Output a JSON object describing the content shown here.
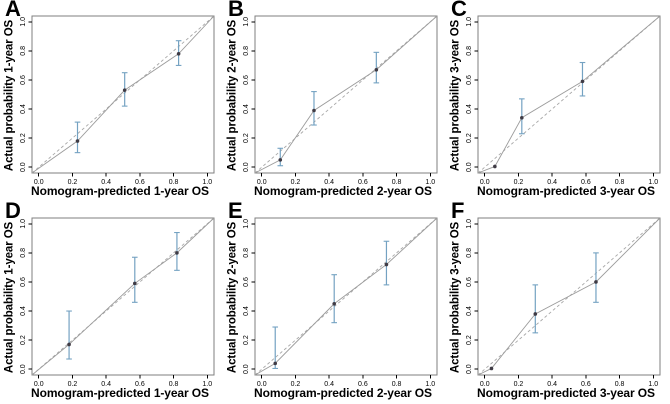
{
  "figure": {
    "background": "#ffffff",
    "description": "Calibration curves of nomogram-predicted vs actual overall survival probability, six panels A-F"
  },
  "colors": {
    "axis": "#000000",
    "box": "#7f7f7f",
    "text": "#000000",
    "ideal_line": "#a8a8a8",
    "calibration_line": "#9c9c9c",
    "error_bar": "#74a2c2",
    "marker": "#3f3b45",
    "background": "#ffffff"
  },
  "chart_data": [
    {
      "panel": "A",
      "type": "scatter",
      "xlabel": "Nomogram-predicted 1-year OS",
      "ylabel": "Actual probability 1-year OS",
      "xlim": [
        0,
        1
      ],
      "ylim": [
        0,
        1
      ],
      "tick_values": [
        0,
        0.2,
        0.4,
        0.6,
        0.8,
        1.0
      ],
      "tick_labels": [
        "0.0",
        "0.2",
        "0.4",
        "0.6",
        "0.8",
        "1.0"
      ],
      "grid": false,
      "ideal_line": "dashed diagonal from (0,0) to (1,1)",
      "points": [
        {
          "x": 0.23,
          "y": 0.18,
          "ci": [
            0.1,
            0.31
          ]
        },
        {
          "x": 0.51,
          "y": 0.53,
          "ci": [
            0.42,
            0.65
          ]
        },
        {
          "x": 0.83,
          "y": 0.78,
          "ci": [
            0.7,
            0.87
          ]
        }
      ]
    },
    {
      "panel": "B",
      "type": "scatter",
      "xlabel": "Nomogram-predicted 2-year OS",
      "ylabel": "Actual probability 2-year OS",
      "xlim": [
        0,
        1
      ],
      "ylim": [
        0,
        1
      ],
      "tick_values": [
        0,
        0.2,
        0.4,
        0.6,
        0.8,
        1.0
      ],
      "tick_labels": [
        "0.0",
        "0.2",
        "0.4",
        "0.6",
        "0.8",
        "1.0"
      ],
      "grid": false,
      "ideal_line": "dashed diagonal from (0,0) to (1,1)",
      "points": [
        {
          "x": 0.11,
          "y": 0.05,
          "ci": [
            0.01,
            0.13
          ]
        },
        {
          "x": 0.31,
          "y": 0.39,
          "ci": [
            0.29,
            0.52
          ]
        },
        {
          "x": 0.68,
          "y": 0.67,
          "ci": [
            0.58,
            0.79
          ]
        }
      ]
    },
    {
      "panel": "C",
      "type": "scatter",
      "xlabel": "Nomogram-predicted 3-year OS",
      "ylabel": "Actual probability 3-year OS",
      "xlim": [
        0,
        1
      ],
      "ylim": [
        0,
        1
      ],
      "tick_values": [
        0,
        0.2,
        0.4,
        0.6,
        0.8,
        1.0
      ],
      "tick_labels": [
        "0.0",
        "0.2",
        "0.4",
        "0.6",
        "0.8",
        "1.0"
      ],
      "grid": false,
      "ideal_line": "dashed diagonal from (0,0) to (1,1)",
      "points": [
        {
          "x": 0.06,
          "y": 0.005,
          "ci": null
        },
        {
          "x": 0.22,
          "y": 0.34,
          "ci": [
            0.23,
            0.47
          ]
        },
        {
          "x": 0.58,
          "y": 0.59,
          "ci": [
            0.49,
            0.72
          ]
        }
      ]
    },
    {
      "panel": "D",
      "type": "scatter",
      "xlabel": "Nomogram-predicted 1-year OS",
      "ylabel": "Actual probability 1-year OS",
      "xlim": [
        0,
        1
      ],
      "ylim": [
        0,
        1
      ],
      "tick_values": [
        0,
        0.2,
        0.4,
        0.6,
        0.8,
        1.0
      ],
      "tick_labels": [
        "0.0",
        "0.2",
        "0.4",
        "0.6",
        "0.8",
        "1.0"
      ],
      "grid": false,
      "ideal_line": "dashed diagonal from (0,0) to (1,1)",
      "points": [
        {
          "x": 0.18,
          "y": 0.17,
          "ci": [
            0.07,
            0.4
          ]
        },
        {
          "x": 0.57,
          "y": 0.59,
          "ci": [
            0.46,
            0.77
          ]
        },
        {
          "x": 0.82,
          "y": 0.8,
          "ci": [
            0.68,
            0.94
          ]
        }
      ]
    },
    {
      "panel": "E",
      "type": "scatter",
      "xlabel": "Nomogram-predicted 2-year OS",
      "ylabel": "Actual probability 2-year OS",
      "xlim": [
        0,
        1
      ],
      "ylim": [
        0,
        1
      ],
      "tick_values": [
        0,
        0.2,
        0.4,
        0.6,
        0.8,
        1.0
      ],
      "tick_labels": [
        "0.0",
        "0.2",
        "0.4",
        "0.6",
        "0.8",
        "1.0"
      ],
      "grid": false,
      "ideal_line": "dashed diagonal from (0,0) to (1,1)",
      "points": [
        {
          "x": 0.08,
          "y": 0.04,
          "ci": [
            0.005,
            0.29
          ]
        },
        {
          "x": 0.43,
          "y": 0.45,
          "ci": [
            0.32,
            0.65
          ]
        },
        {
          "x": 0.74,
          "y": 0.72,
          "ci": [
            0.58,
            0.88
          ]
        }
      ]
    },
    {
      "panel": "F",
      "type": "scatter",
      "xlabel": "Nomogram-predicted 3-year OS",
      "ylabel": "Actual probability 3-year OS",
      "xlim": [
        0,
        1
      ],
      "ylim": [
        0,
        1
      ],
      "tick_values": [
        0,
        0.2,
        0.4,
        0.6,
        0.8,
        1.0
      ],
      "tick_labels": [
        "0.0",
        "0.2",
        "0.4",
        "0.6",
        "0.8",
        "1.0"
      ],
      "grid": false,
      "ideal_line": "dashed diagonal from (0,0) to (1,1)",
      "points": [
        {
          "x": 0.04,
          "y": 0.005,
          "ci": null
        },
        {
          "x": 0.3,
          "y": 0.38,
          "ci": [
            0.25,
            0.58
          ]
        },
        {
          "x": 0.66,
          "y": 0.6,
          "ci": [
            0.46,
            0.8
          ]
        }
      ]
    }
  ]
}
